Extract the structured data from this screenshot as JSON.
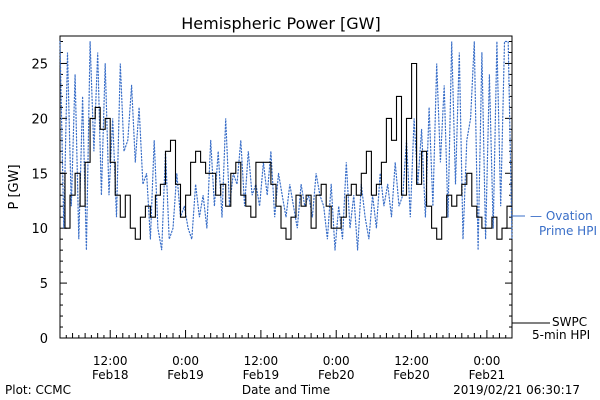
{
  "footer": {
    "plot_credit": "Plot: CCMC",
    "timestamp": "2019/02/21 06:30:17"
  },
  "chart_data": {
    "type": "line",
    "title": "Hemispheric Power [GW]",
    "xlabel": "Date and Time",
    "ylabel": "P [GW]",
    "ylim": [
      0,
      27.5
    ],
    "xlim": [
      0,
      72
    ],
    "x_unit": "hours since Feb18 04:00",
    "yticks": [
      0,
      5,
      10,
      15,
      20,
      25
    ],
    "xticks": [
      {
        "x": 8,
        "time": "12:00",
        "date": "Feb18"
      },
      {
        "x": 20,
        "time": "0:00",
        "date": "Feb19"
      },
      {
        "x": 32,
        "time": "12:00",
        "date": "Feb19"
      },
      {
        "x": 44,
        "time": "0:00",
        "date": "Feb20"
      },
      {
        "x": 56,
        "time": "12:00",
        "date": "Feb20"
      },
      {
        "x": 68,
        "time": "0:00",
        "date": "Feb21"
      }
    ],
    "grid": false,
    "legend_placement": "right",
    "series": [
      {
        "name_lines": [
          "— Ovation",
          "Prime HPI"
        ],
        "color": "#3a6fc8",
        "style": "dotted",
        "x": [
          0,
          0.6,
          1.2,
          1.8,
          2.4,
          3,
          3.6,
          4.2,
          4.8,
          5.4,
          6,
          6.6,
          7.2,
          7.8,
          8.4,
          9,
          9.6,
          10.2,
          10.8,
          11.4,
          12,
          12.6,
          13.2,
          13.8,
          14.4,
          15,
          15.6,
          16.2,
          16.8,
          17.4,
          18,
          18.6,
          19.2,
          19.8,
          20.4,
          21,
          21.6,
          22.2,
          22.8,
          23.4,
          24,
          24.6,
          25.2,
          25.8,
          26.4,
          27,
          27.6,
          28.2,
          28.8,
          29.4,
          30,
          30.6,
          31.2,
          31.8,
          32.4,
          33,
          33.6,
          34.2,
          34.8,
          35.4,
          36,
          36.6,
          37.2,
          37.8,
          38.4,
          39,
          39.6,
          40.2,
          40.8,
          41.4,
          42,
          42.6,
          43.2,
          43.8,
          44.4,
          45,
          45.6,
          46.2,
          46.8,
          47.4,
          48,
          48.6,
          49.2,
          49.8,
          50.4,
          51,
          51.6,
          52.2,
          52.8,
          53.4,
          54,
          54.6,
          55.2,
          55.8,
          56.4,
          57,
          57.6,
          58.2,
          58.8,
          59.4,
          60,
          60.6,
          61.2,
          61.8,
          62.4,
          63,
          63.6,
          64.2,
          64.8,
          65.4,
          66,
          66.6,
          67.2,
          67.8,
          68.4,
          69,
          69.6,
          70.2,
          70.8,
          71.4,
          72
        ],
        "values": [
          27,
          10,
          26,
          12,
          24,
          9,
          22,
          8,
          27,
          17,
          26,
          13,
          25,
          13,
          20,
          11,
          25,
          17,
          18,
          23,
          16,
          21,
          14,
          15,
          9,
          18,
          10,
          8,
          17,
          9,
          10,
          15,
          11,
          12,
          10,
          9,
          14,
          11,
          13,
          10,
          18,
          12,
          17,
          11,
          20,
          12,
          15,
          14,
          18,
          12,
          17,
          13,
          14,
          12,
          16,
          13,
          17,
          11,
          15,
          13,
          11,
          14,
          12,
          10,
          14,
          12,
          13,
          11,
          15,
          13,
          12,
          9,
          14,
          8,
          12,
          9,
          16,
          10,
          13,
          8,
          14,
          11,
          9,
          13,
          10,
          15,
          12,
          14,
          11,
          16,
          12,
          13,
          18,
          11,
          20,
          14,
          19,
          11,
          21,
          12,
          25,
          16,
          23,
          11,
          27,
          14,
          26,
          9,
          18,
          20,
          27,
          8,
          26,
          9,
          24,
          10,
          27,
          12,
          27,
          27,
          9
        ]
      },
      {
        "name_lines": [
          "SWPC",
          "5-min HPI"
        ],
        "color": "#000000",
        "style": "solid",
        "x": [
          0,
          0.8,
          1.6,
          2.4,
          3.2,
          4,
          4.8,
          5.6,
          6.4,
          7.2,
          8,
          8.8,
          9.6,
          10.4,
          11.2,
          12,
          12.8,
          13.6,
          14.4,
          15.2,
          16,
          16.8,
          17.6,
          18.4,
          19.2,
          20,
          20.8,
          21.6,
          22.4,
          23.2,
          24,
          24.8,
          25.6,
          26.4,
          27.2,
          28,
          28.8,
          29.6,
          30.4,
          31.2,
          32,
          32.8,
          33.6,
          34.4,
          35.2,
          36,
          36.8,
          37.6,
          38.4,
          39.2,
          40,
          40.8,
          41.6,
          42.4,
          43.2,
          44,
          44.8,
          45.6,
          46.4,
          47.2,
          48,
          48.8,
          49.6,
          50.4,
          51.2,
          52,
          52.8,
          53.6,
          54.4,
          55.2,
          56,
          56.8,
          57.6,
          58.4,
          59.2,
          60,
          60.8,
          61.6,
          62.4,
          63.2,
          64,
          64.8,
          65.6,
          66.4,
          67.2,
          68,
          68.8,
          69.6,
          70.4,
          71.2,
          72
        ],
        "values": [
          15,
          10,
          13,
          15,
          12,
          16,
          20,
          21,
          19,
          20,
          16,
          13,
          11,
          13,
          10,
          9,
          11,
          12,
          11,
          13,
          14,
          17,
          18,
          14,
          11,
          13,
          16,
          17,
          16,
          15,
          15,
          13,
          14,
          12,
          15,
          16,
          13,
          12,
          11,
          16,
          16,
          16,
          14,
          12,
          10,
          9,
          11,
          13,
          12,
          13,
          10,
          13,
          14,
          12,
          10,
          10,
          11,
          13,
          14,
          13,
          15,
          17,
          13,
          14,
          16,
          20,
          18,
          22,
          13,
          20,
          25,
          14,
          17,
          12,
          10,
          9,
          11,
          13,
          12,
          13,
          14,
          15,
          12,
          11,
          10,
          10,
          11,
          9,
          10,
          12,
          12
        ]
      }
    ]
  }
}
